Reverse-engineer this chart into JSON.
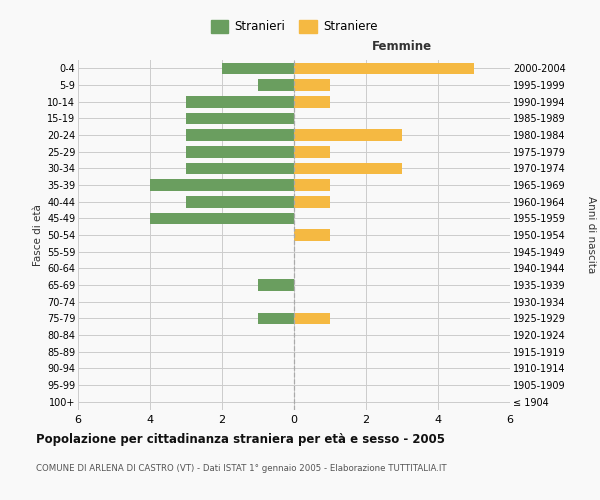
{
  "age_groups": [
    "100+",
    "95-99",
    "90-94",
    "85-89",
    "80-84",
    "75-79",
    "70-74",
    "65-69",
    "60-64",
    "55-59",
    "50-54",
    "45-49",
    "40-44",
    "35-39",
    "30-34",
    "25-29",
    "20-24",
    "15-19",
    "10-14",
    "5-9",
    "0-4"
  ],
  "birth_years": [
    "≤ 1904",
    "1905-1909",
    "1910-1914",
    "1915-1919",
    "1920-1924",
    "1925-1929",
    "1930-1934",
    "1935-1939",
    "1940-1944",
    "1945-1949",
    "1950-1954",
    "1955-1959",
    "1960-1964",
    "1965-1969",
    "1970-1974",
    "1975-1979",
    "1980-1984",
    "1985-1989",
    "1990-1994",
    "1995-1999",
    "2000-2004"
  ],
  "males": [
    0,
    0,
    0,
    0,
    0,
    1,
    0,
    1,
    0,
    0,
    0,
    4,
    3,
    4,
    3,
    3,
    3,
    3,
    3,
    1,
    2
  ],
  "females": [
    0,
    0,
    0,
    0,
    0,
    1,
    0,
    0,
    0,
    0,
    1,
    0,
    1,
    1,
    3,
    1,
    3,
    0,
    1,
    1,
    5
  ],
  "male_color": "#6a9e5f",
  "female_color": "#f5b942",
  "xlim": 6,
  "grid_color": "#cccccc",
  "title": "Popolazione per cittadinanza straniera per età e sesso - 2005",
  "subtitle": "COMUNE DI ARLENA DI CASTRO (VT) - Dati ISTAT 1° gennaio 2005 - Elaborazione TUTTITALIA.IT",
  "ylabel_left": "Fasce di età",
  "ylabel_right": "Anni di nascita",
  "femmine_label": "Femmine",
  "legend_male": "Stranieri",
  "legend_female": "Straniere",
  "bg_color": "#f9f9f9",
  "bar_height": 0.7
}
